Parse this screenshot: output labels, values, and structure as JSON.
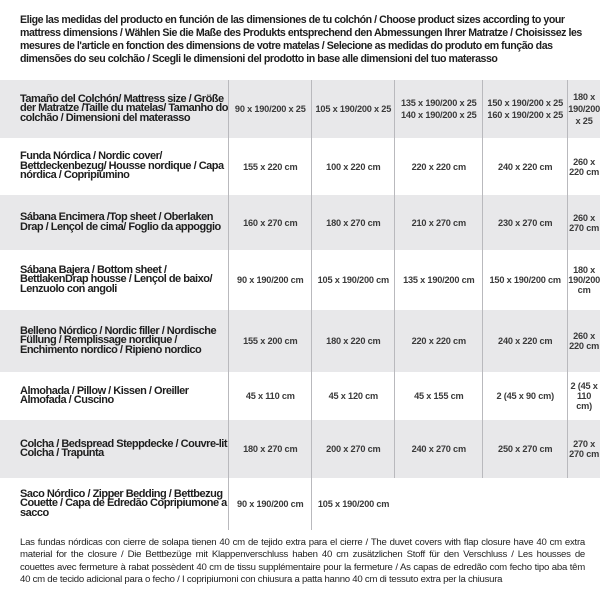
{
  "intro": "Elige las medidas del producto en función de las dimensiones de tu colchón / Choose product sizes according to your mattress dimensions / Wählen Sie die Maße des Produkts entsprechend den Abmessungen Ihrer Matratze / Choisissez les mesures de l'article en fonction des dimensions de votre matelas / Selecione as medidas do produto em função das dimensões do seu colchão / Scegli le dimensioni del prodotto in base alle dimensioni del tuo materasso",
  "table": {
    "header": {
      "label": "Tamaño del Colchón/ Mattress size / Größe der Matratze /Taille du matelas/ Tamanho do colchão / Dimensioni del materasso",
      "sizes": [
        [
          "90 x 190/200 x 25"
        ],
        [
          "105 x 190/200 x 25"
        ],
        [
          "135 x 190/200 x 25",
          "140 x 190/200 x 25"
        ],
        [
          "150 x 190/200 x 25",
          "160 x 190/200 x 25"
        ],
        [
          "180 x 190/200 x 25"
        ]
      ]
    },
    "rows": [
      {
        "label": "Funda Nórdica /  Nordic cover/ Bettdeckenbezug/ Housse nordique  / Capa nórdica / Copripiumino",
        "values": [
          "155 x 220 cm",
          "100 x 220 cm",
          "220 x 220 cm",
          "240 x 220 cm",
          "260 x 220 cm"
        ]
      },
      {
        "label": "Sábana Encimera /Top sheet / Oberlaken Drap / Lençol de cima/ Foglio da appoggio",
        "values": [
          "160 x 270 cm",
          "180 x 270 cm",
          "210 x 270 cm",
          "230 x 270 cm",
          "260 x 270 cm"
        ]
      },
      {
        "label": "Sábana Bajera / Bottom sheet / BettlakenDrap housse / Lençol de baixo/ Lenzuolo con angoli",
        "values": [
          "90 x 190/200 cm",
          "105 x 190/200 cm",
          "135 x 190/200 cm",
          "150 x 190/200 cm",
          "180 x 190/200 cm"
        ]
      },
      {
        "label": "Belleno Nórdico / Nordic filler / Nordische Füllung / Remplissage nordique / Enchimento nordico / Ripieno nordico",
        "values": [
          "155 x 200 cm",
          "180 x 220 cm",
          "220 x 220 cm",
          "240 x 220 cm",
          "260 x 220 cm"
        ]
      },
      {
        "label": "Almohada  / Pillow / Kissen / Oreiller Almofada / Cuscino",
        "values": [
          "45 x 110 cm",
          "45 x 120 cm",
          "45 x 155 cm",
          "2 (45 x 90 cm)",
          "2 (45 x 110 cm)"
        ]
      },
      {
        "label": "Colcha / Bedspread Steppdecke / Couvre-lit Colcha / Trapunta",
        "values": [
          "180 x 270 cm",
          "200 x 270 cm",
          "240 x 270 cm",
          "250 x 270 cm",
          "270 x 270 cm"
        ]
      },
      {
        "label": "Saco Nórdico / Zipper Bedding / Bettbezug Couette  / Capa de Edredão Copripiumone a sacco",
        "values": [
          "90 x 190/200 cm",
          "105 x 190/200 cm",
          "",
          "",
          ""
        ]
      }
    ]
  },
  "footnote": "Las fundas nórdicas con cierre de solapa tienen 40 cm de tejido extra para el cierre  / The duvet covers with flap closure have 40 cm extra material for the closure / Die Bettbezüge mit Klappenverschluss haben 40 cm zusätzlichen Stoff für den Verschluss / Les housses de couettes avec fermeture à rabat possèdent 40 cm de tissu supplémentaire pour la fermeture / As capas de edredão com fecho tipo aba têm 40 cm de tecido adicional para o fecho / I copripiumoni con chiusura a patta hanno 40 cm di tessuto extra per la chiusura",
  "colors": {
    "row_alt": "#e8e8ea",
    "divider": "#b9b9bd",
    "text": "#1e1e1e"
  }
}
